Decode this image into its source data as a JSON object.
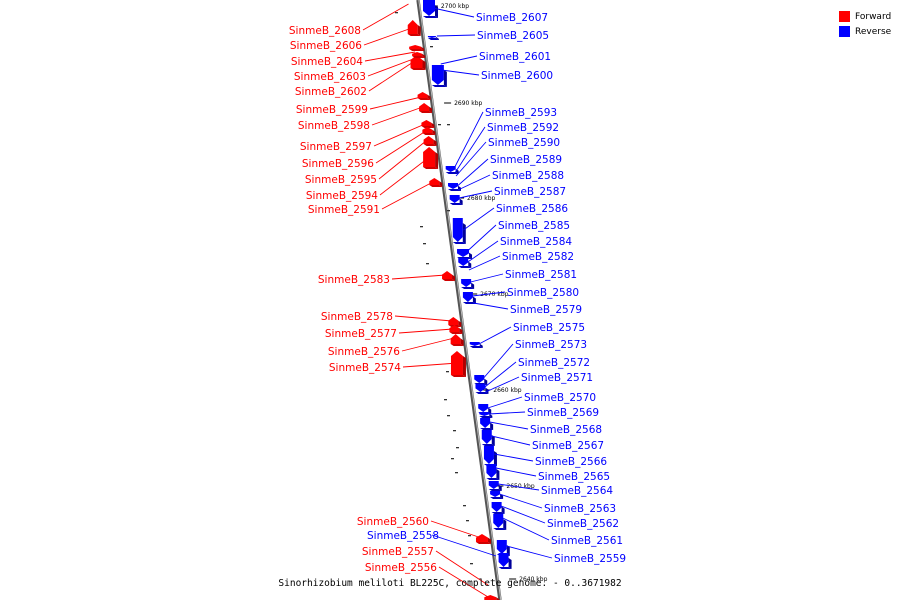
{
  "colors": {
    "forward": "#ff0000",
    "reverse": "#0000ff",
    "backbone": "#808080"
  },
  "legend": [
    {
      "label": "Forward",
      "color": "#ff0000"
    },
    {
      "label": "Reverse",
      "color": "#0000ff"
    }
  ],
  "caption": "Sinorhizobium meliloti BL225C, complete genome. - 0..3671982",
  "ticks": [
    "2700 kbp",
    "2690 kbp",
    "2680 kbp",
    "2670 kbp",
    "2660 kbp",
    "2650 kbp",
    "2640 kbp"
  ],
  "forward_genes": [
    "SinmeB_2608",
    "SinmeB_2606",
    "SinmeB_2604",
    "SinmeB_2603",
    "SinmeB_2602",
    "SinmeB_2599",
    "SinmeB_2598",
    "SinmeB_2597",
    "SinmeB_2596",
    "SinmeB_2595",
    "SinmeB_2594",
    "SinmeB_2591",
    "SinmeB_2583",
    "SinmeB_2578",
    "SinmeB_2577",
    "SinmeB_2576",
    "SinmeB_2574",
    "SinmeB_2560",
    "SinmeB_2557",
    "SinmeB_2556"
  ],
  "reverse_genes": [
    "SinmeB_2607",
    "SinmeB_2605",
    "SinmeB_2601",
    "SinmeB_2600",
    "SinmeB_2593",
    "SinmeB_2592",
    "SinmeB_2590",
    "SinmeB_2589",
    "SinmeB_2588",
    "SinmeB_2587",
    "SinmeB_2586",
    "SinmeB_2585",
    "SinmeB_2584",
    "SinmeB_2582",
    "SinmeB_2581",
    "SinmeB_2580",
    "SinmeB_2579",
    "SinmeB_2575",
    "SinmeB_2573",
    "SinmeB_2572",
    "SinmeB_2571",
    "SinmeB_2570",
    "SinmeB_2569",
    "SinmeB_2568",
    "SinmeB_2567",
    "SinmeB_2566",
    "SinmeB_2565",
    "SinmeB_2564",
    "SinmeB_2563",
    "SinmeB_2562",
    "SinmeB_2561",
    "SinmeB_2559",
    "SinmeB_2558"
  ]
}
